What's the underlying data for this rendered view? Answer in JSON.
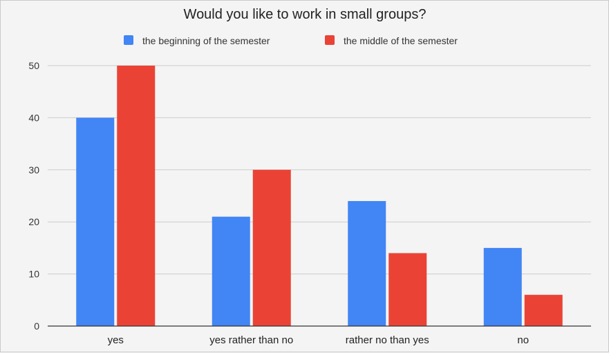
{
  "chart_data": {
    "type": "bar",
    "title": "Would you like to work in small groups?",
    "xlabel": "",
    "ylabel": "",
    "categories": [
      "yes",
      "yes rather than no",
      "rather no than yes",
      "no"
    ],
    "series": [
      {
        "name": "the beginning of the semester",
        "color": "#4285f4",
        "values": [
          40,
          21,
          24,
          15
        ]
      },
      {
        "name": "the middle of the semester",
        "color": "#ea4335",
        "values": [
          50,
          30,
          14,
          6
        ]
      }
    ],
    "ylim": [
      0,
      50
    ],
    "yticks": [
      "0",
      "10",
      "20",
      "30",
      "40",
      "50"
    ],
    "grid": true,
    "legend_position": "top"
  }
}
